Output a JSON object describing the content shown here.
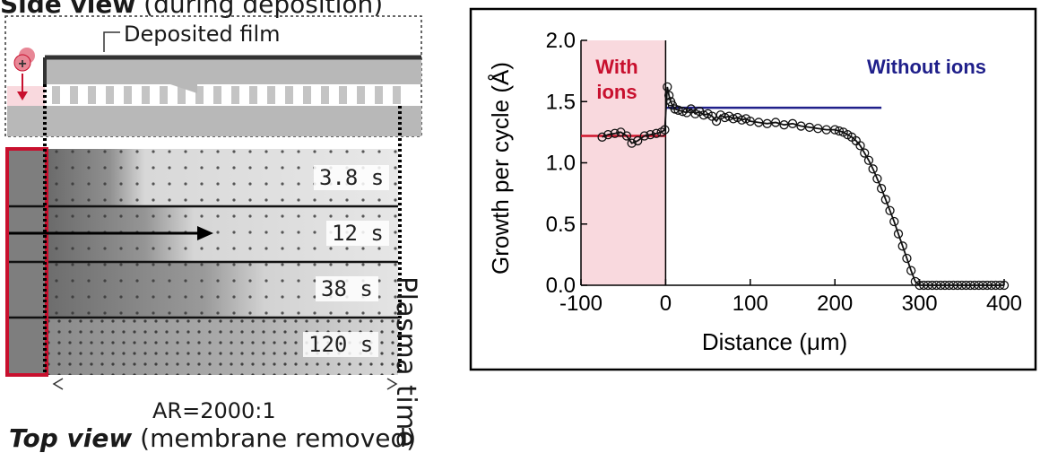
{
  "left_panel": {
    "side_view_title_bold": "Side view",
    "side_view_title_rest": "(during deposition)",
    "film_label": "Deposited film",
    "ion_symbol": "+",
    "plasma_times": [
      "3.8 s",
      "12 s",
      "38 s",
      "120 s"
    ],
    "plasma_time_label": "Plasma time",
    "aspect_ratio_label": "AR=2000:1",
    "top_view_title_bold": "Top view",
    "top_view_title_rest": "(membrane removed)",
    "colors": {
      "ion_red": "#c8102e",
      "highlight_pink": "#f9d9de"
    }
  },
  "chart_data": {
    "type": "scatter",
    "xlabel": "Distance (μm)",
    "ylabel": "Growth per cycle (Å)",
    "xlim": [
      -100,
      400
    ],
    "ylim": [
      0.0,
      2.0
    ],
    "x_ticks": [
      "-100",
      "0",
      "100",
      "200",
      "300",
      "400"
    ],
    "y_ticks": [
      "0.0",
      "0.5",
      "1.0",
      "1.5",
      "2.0"
    ],
    "annotations": {
      "with_ions": [
        "With",
        "ions"
      ],
      "without_ions": "Without ions"
    },
    "shaded_region": {
      "x_from": -100,
      "x_to": 0,
      "color": "#f9d9de"
    },
    "reference_lines": [
      {
        "x_from": -100,
        "x_to": 0,
        "y": 1.22,
        "color": "#d0142c"
      },
      {
        "x_from": 0,
        "x_to": 255,
        "y": 1.45,
        "color": "#1f1f8a"
      }
    ],
    "series": [
      {
        "x": [
          -75,
          -68,
          -60,
          -53,
          -46,
          -40,
          -33,
          -25,
          -18,
          -11,
          -5,
          -1,
          2,
          4,
          6,
          8,
          11,
          15,
          20,
          25,
          30,
          35,
          40,
          45,
          50,
          55,
          60,
          65,
          70,
          75,
          80,
          85,
          90,
          95,
          100,
          110,
          120,
          130,
          140,
          150,
          160,
          170,
          180,
          190,
          200,
          205,
          210,
          215,
          220,
          225,
          230,
          235,
          240,
          245,
          250,
          255,
          260,
          265,
          270,
          275,
          280,
          285,
          290,
          295,
          300,
          305,
          310,
          315,
          320,
          325,
          330,
          335,
          340,
          345,
          350,
          355,
          360,
          365,
          370,
          375,
          380,
          385,
          390,
          395,
          400
        ],
        "y": [
          1.21,
          1.23,
          1.24,
          1.25,
          1.22,
          1.16,
          1.18,
          1.22,
          1.23,
          1.24,
          1.25,
          1.27,
          1.62,
          1.55,
          1.5,
          1.47,
          1.44,
          1.43,
          1.42,
          1.41,
          1.44,
          1.4,
          1.42,
          1.39,
          1.4,
          1.38,
          1.34,
          1.39,
          1.37,
          1.38,
          1.36,
          1.37,
          1.35,
          1.36,
          1.34,
          1.33,
          1.32,
          1.33,
          1.31,
          1.32,
          1.3,
          1.29,
          1.28,
          1.27,
          1.27,
          1.26,
          1.25,
          1.23,
          1.21,
          1.18,
          1.14,
          1.08,
          1.02,
          0.95,
          0.87,
          0.79,
          0.7,
          0.61,
          0.52,
          0.42,
          0.32,
          0.22,
          0.12,
          0.03,
          0.0,
          0.0,
          0.0,
          0.0,
          0.0,
          0.0,
          0.0,
          0.0,
          0.0,
          0.0,
          0.0,
          0.0,
          0.0,
          0.0,
          0.0,
          0.0,
          0.0,
          0.0,
          0.0,
          0.0,
          0.0
        ]
      }
    ]
  }
}
